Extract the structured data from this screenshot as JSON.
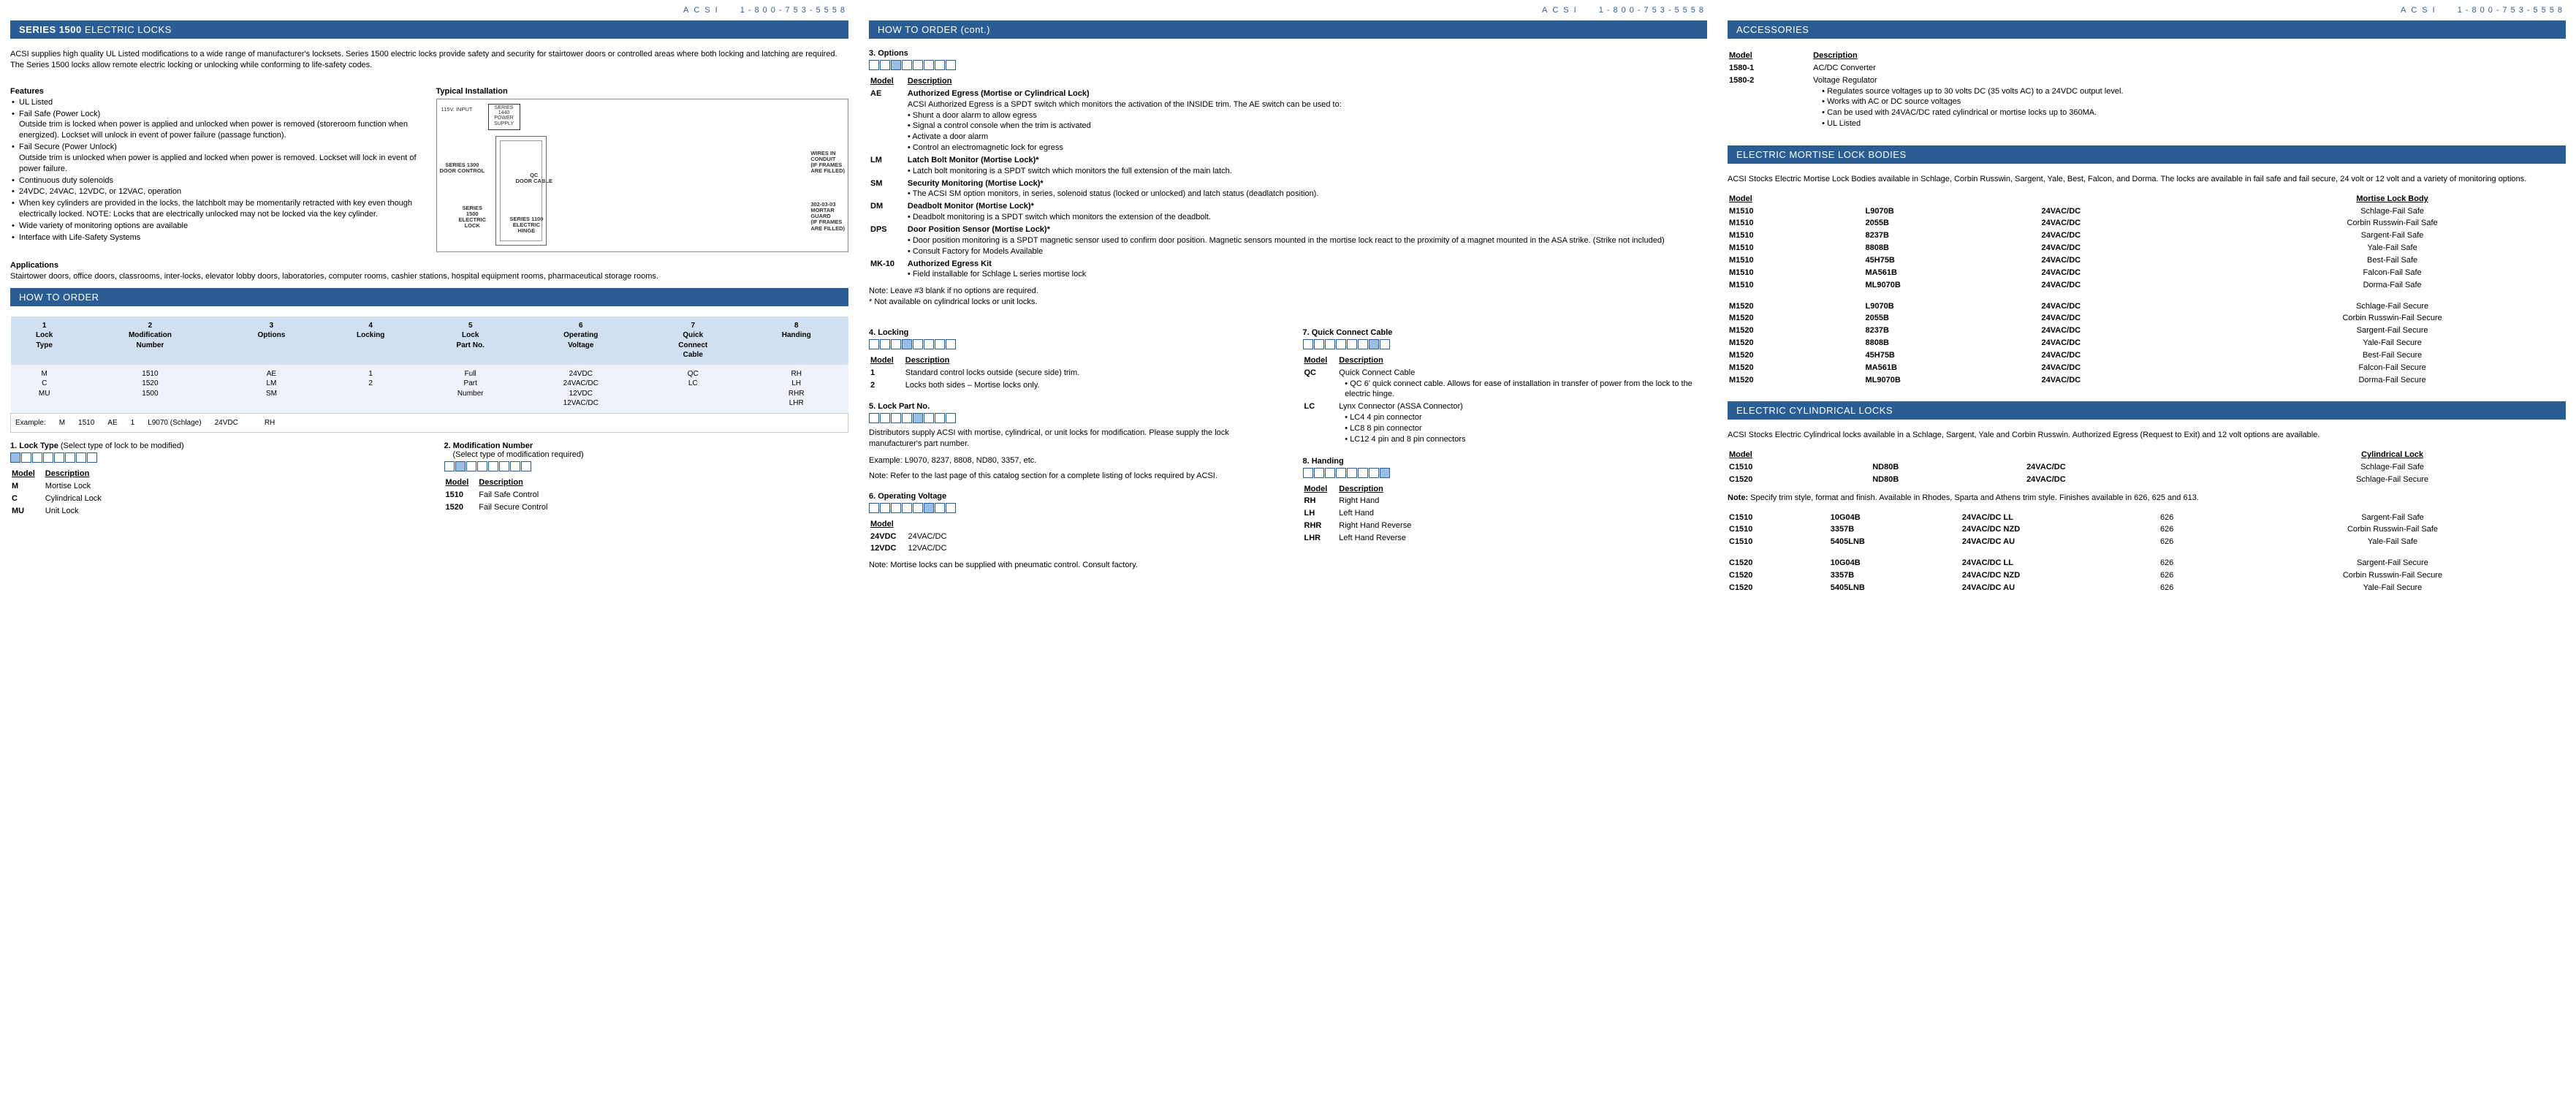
{
  "brand": "ACSI",
  "phone": "1-800-753-5558",
  "colors": {
    "barBlue": "#2a5d94",
    "headerBlue": "#d1e0f0",
    "cellBlue": "#eef3fa",
    "boxFill": "#9abfe6"
  },
  "col1": {
    "seriesBarBold": "SERIES 1500",
    "seriesBarRest": " ELECTRIC LOCKS",
    "intro": "ACSI supplies high quality UL Listed modifications to a wide range of manufacturer's locksets.  Series 1500 electric locks provide safety and security for stairtower doors or controlled areas where both locking and latching are required.  The Series 1500 locks allow remote electric locking or unlocking while conforming to life-safety codes.",
    "featuresTitle": "Features",
    "features": [
      {
        "t": "UL Listed"
      },
      {
        "t": "Fail Safe (Power Lock)",
        "d": "Outside trim is locked when power is applied and unlocked when power is removed (storeroom function when energized).  Lockset will unlock in event of power failure (passage function)."
      },
      {
        "t": "Fail Secure (Power Unlock)",
        "d": "Outside trim is unlocked when power is applied and locked when power is removed.  Lockset will lock in event of power failure."
      },
      {
        "t": "Continuous duty solenoids"
      },
      {
        "t": "24VDC, 24VAC, 12VDC, or 12VAC, operation"
      },
      {
        "t": "When key cylinders are provided in the locks, the latchbolt may be momentarily retracted with key even though electrically locked.  NOTE: Locks that are electrically unlocked may not be locked via the key cylinder."
      },
      {
        "t": "Wide variety of monitoring options are available"
      },
      {
        "t": "Interface with Life-Safety Systems"
      }
    ],
    "typicalTitle": "Typical Installation",
    "diagram": {
      "input": "115V. INPUT",
      "ps": "SERIES\n1440\nPOWER\nSUPPLY",
      "s1300": "SERIES 1300\nDOOR CONTROL",
      "qc": "QC\nDOOR CABLE",
      "wires": "WIRES IN\nCONDUIT\n(IF FRAMES\nARE FILLED)",
      "s1500": "SERIES\n1500\nELECTRIC\nLOCK",
      "s1100": "SERIES 1100\nELECTRIC\nHINGE",
      "mortar": "302-03-03\nMORTAR\nGUARD\n(IF FRAMES\nARE FILLED)"
    },
    "appsTitle": "Applications",
    "apps": "Stairtower doors, office doors, classrooms, inter-locks, elevator lobby doors, laboratories, computer rooms, cashier stations, hospital equipment rooms, pharmaceutical storage rooms.",
    "howToOrderBar": "HOW TO ORDER",
    "orderHeaders": [
      "1\nLock\nType",
      "2\nModification\nNumber",
      "3\nOptions",
      "4\nLocking",
      "5\nLock\nPart No.",
      "6\nOperating\nVoltage",
      "7\nQuick\nConnect\nCable",
      "8\nHanding"
    ],
    "orderCells": [
      "M\nC\nMU",
      "1510\n1520\n1500",
      "AE\nLM\nSM",
      "1\n2",
      "Full\nPart\nNumber",
      "24VDC\n24VAC/DC\n12VDC\n12VAC/DC",
      "QC\nLC",
      "RH\nLH\nRHR\nLHR"
    ],
    "exampleLabel": "Example:",
    "exampleCells": [
      "M",
      "1510",
      "AE",
      "1",
      "L9070 (Schlage)",
      "24VDC",
      "",
      "RH"
    ],
    "lockTypeTitle": "1. Lock Type",
    "lockTypeSub": " (Select type of lock to be modified)",
    "mdHdr": "Model",
    "descHdr": "Description",
    "lockTypes": [
      [
        "M",
        "Mortise Lock"
      ],
      [
        "C",
        "Cylindrical Lock"
      ],
      [
        "MU",
        "Unit Lock"
      ]
    ],
    "modNumTitle": "2. Modification Number",
    "modNumSub": "(Select type of modification required)",
    "modNums": [
      [
        "1510",
        "Fail Safe Control"
      ],
      [
        "1520",
        "Fail Secure Control"
      ]
    ]
  },
  "col2": {
    "bar": "HOW TO ORDER (cont.)",
    "optTitle": "3. Options",
    "options": [
      [
        "AE",
        "Authorized Egress (Mortise or Cylindrical Lock)",
        "ACSI Authorized Egress is a SPDT switch which monitors the activation of the INSIDE trim. The AE switch can be used to:\n• Shunt a door alarm to allow egress\n• Signal a control console when the trim is activated\n• Activate a door alarm\n• Control an electromagnetic lock for egress"
      ],
      [
        "LM",
        "Latch Bolt Monitor (Mortise Lock)*",
        "• Latch bolt monitoring is a SPDT switch which monitors the full extension of the main latch."
      ],
      [
        "SM",
        "Security Monitoring (Mortise Lock)*",
        "• The ACSI SM option monitors, in series, solenoid status (locked or unlocked) and latch status (deadlatch position)."
      ],
      [
        "DM",
        "Deadbolt Monitor (Mortise Lock)*",
        "• Deadbolt monitoring is a SPDT switch which monitors the extension of the deadbolt."
      ],
      [
        "DPS",
        "Door Position Sensor (Mortise Lock)*",
        "• Door position monitoring is a SPDT magnetic sensor used to confirm door position.  Magnetic sensors mounted in the mortise lock react to the proximity of a magnet mounted in the ASA strike. (Strike not included)\n• Consult Factory for Models Available"
      ],
      [
        "MK-10",
        "Authorized Egress Kit",
        "• Field installable for Schlage L series mortise lock"
      ]
    ],
    "noteOptions": "Note: Leave #3 blank if no options are required.\n* Not available on cylindrical locks or unit locks.",
    "lockingTitle": "4. Locking",
    "locking": [
      [
        "1",
        "Standard control locks outside (secure side) trim."
      ],
      [
        "2",
        "Locks both sides – Mortise locks only."
      ]
    ],
    "lockPartTitle": "5. Lock Part No.",
    "lockPartText": "Distributors supply ACSI with mortise, cylindrical, or unit locks for modification.  Please supply the lock manufacturer's part number.",
    "lockPartEx": "Example: L9070, 8237, 8808, ND80, 3357, etc.",
    "lockPartNote": "Note: Refer to the last page of this catalog section for a complete listing of locks required by ACSI.",
    "voltTitle": "6. Operating Voltage",
    "voltRows": [
      [
        "24VDC",
        "24VAC/DC"
      ],
      [
        "12VDC",
        "12VAC/DC"
      ]
    ],
    "voltNote": "Note: Mortise locks can be supplied with pneumatic control.  Consult factory.",
    "qcTitle": "7. Quick Connect Cable",
    "qcRows": [
      [
        "QC",
        "Quick Connect Cable",
        "• QC  6' quick connect cable. Allows for ease of installation in transfer of power from the lock to the electric hinge."
      ],
      [
        "LC",
        "Lynx Connector (ASSA Connector)",
        "• LC4   4 pin connector\n• LC8   8 pin connector\n• LC12  4 pin and 8 pin connectors"
      ]
    ],
    "handTitle": "8. Handing",
    "handRows": [
      [
        "RH",
        "Right Hand"
      ],
      [
        "LH",
        "Left Hand"
      ],
      [
        "RHR",
        "Right Hand Reverse"
      ],
      [
        "LHR",
        "Left Hand Reverse"
      ]
    ]
  },
  "col3": {
    "accBar": "ACCESSORIES",
    "accRows": [
      [
        "1580-1",
        "AC/DC Converter",
        ""
      ],
      [
        "1580-2",
        "Voltage Regulator",
        "• Regulates source voltages up to 30 volts DC (35 volts AC) to a 24VDC output level.\n• Works with AC or DC source voltages\n• Can be used with 24VAC/DC rated cylindrical or mortise locks up to 360MA.\n• UL Listed"
      ]
    ],
    "mortBar": "ELECTRIC MORTISE LOCK BODIES",
    "mortIntro": "ACSI Stocks Electric Mortise Lock Bodies available in Schlage, Corbin Russwin, Sargent, Yale, Best, Falcon, and Dorma. The locks are available in fail safe and fail secure, 24 volt or 12 volt and a variety of monitoring options.",
    "mortHdr1": "Model",
    "mortHdr2": "Mortise Lock Body",
    "mortRows1": [
      [
        "M1510",
        "L9070B",
        "24VAC/DC",
        "Schlage-Fail Safe"
      ],
      [
        "M1510",
        "2055B",
        "24VAC/DC",
        "Corbin Russwin-Fail Safe"
      ],
      [
        "M1510",
        "8237B",
        "24VAC/DC",
        "Sargent-Fail Safe"
      ],
      [
        "M1510",
        "8808B",
        "24VAC/DC",
        "Yale-Fail Safe"
      ],
      [
        "M1510",
        "45H75B",
        "24VAC/DC",
        "Best-Fail Safe"
      ],
      [
        "M1510",
        "MA561B",
        "24VAC/DC",
        "Falcon-Fail Safe"
      ],
      [
        "M1510",
        "ML9070B",
        "24VAC/DC",
        "Dorma-Fail Safe"
      ]
    ],
    "mortRows2": [
      [
        "M1520",
        "L9070B",
        "24VAC/DC",
        "Schlage-Fail Secure"
      ],
      [
        "M1520",
        "2055B",
        "24VAC/DC",
        "Corbin Russwin-Fail Secure"
      ],
      [
        "M1520",
        "8237B",
        "24VAC/DC",
        "Sargent-Fail Secure"
      ],
      [
        "M1520",
        "8808B",
        "24VAC/DC",
        "Yale-Fail Secure"
      ],
      [
        "M1520",
        "45H75B",
        "24VAC/DC",
        "Best-Fail Secure"
      ],
      [
        "M1520",
        "MA561B",
        "24VAC/DC",
        "Falcon-Fail Secure"
      ],
      [
        "M1520",
        "ML9070B",
        "24VAC/DC",
        "Dorma-Fail Secure"
      ]
    ],
    "cylBar": "ELECTRIC CYLINDRICAL LOCKS",
    "cylIntro": "ACSI Stocks Electric Cylindrical locks available in a Schlage, Sargent, Yale and Corbin Russwin. Authorized Egress (Request to Exit) and 12 volt options are available.",
    "cylHdr2": "Cylindrical Lock",
    "cylRows1": [
      [
        "C1510",
        "ND80B",
        "24VAC/DC",
        "Schlage-Fail Safe"
      ],
      [
        "C1520",
        "ND80B",
        "24VAC/DC",
        "Schlage-Fail Secure"
      ]
    ],
    "cylNote": "Note: Specify trim style, format and finish. Available in Rhodes, Sparta and Athens trim style. Finishes available in 626, 625 and 613.",
    "cylRows2": [
      [
        "C1510",
        "10G04B",
        "24VAC/DC LL",
        "626",
        "Sargent-Fail Safe"
      ],
      [
        "C1510",
        "3357B",
        "24VAC/DC NZD",
        "626",
        "Corbin Russwin-Fail Safe"
      ],
      [
        "C1510",
        "5405LNB",
        "24VAC/DC AU",
        "626",
        "Yale-Fail Safe"
      ]
    ],
    "cylRows3": [
      [
        "C1520",
        "10G04B",
        "24VAC/DC LL",
        "626",
        "Sargent-Fail Secure"
      ],
      [
        "C1520",
        "3357B",
        "24VAC/DC NZD",
        "626",
        "Corbin Russwin-Fail Secure"
      ],
      [
        "C1520",
        "5405LNB",
        "24VAC/DC AU",
        "626",
        "Yale-Fail Secure"
      ]
    ]
  }
}
